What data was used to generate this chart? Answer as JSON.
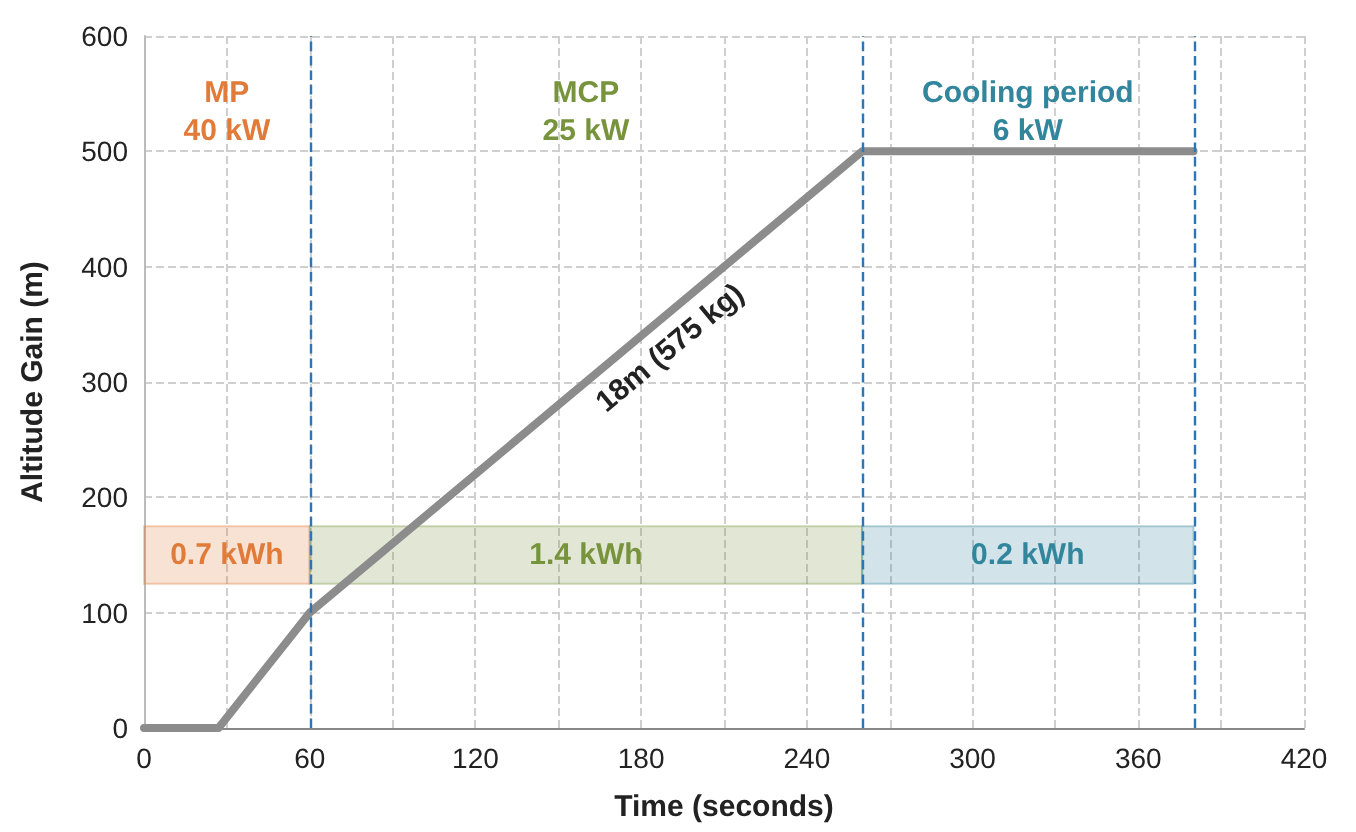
{
  "chart_data": {
    "type": "line",
    "xlabel": "Time (seconds)",
    "ylabel": "Altitude Gain (m)",
    "x": [
      0,
      27,
      60,
      260,
      380
    ],
    "series": [
      {
        "color": "#8c8c8c",
        "values": [
          0,
          0,
          100,
          500,
          500
        ]
      }
    ],
    "xlim": [
      0,
      420
    ],
    "ylim": [
      0,
      600
    ],
    "xticks": [
      0,
      {
        "value": 30,
        "label": null
      },
      60,
      {
        "value": 90,
        "label": null
      },
      120,
      {
        "value": 150,
        "label": null
      },
      180,
      {
        "value": 210,
        "label": null
      },
      240,
      {
        "value": 270,
        "label": null
      },
      300,
      {
        "value": 330,
        "label": null
      },
      360,
      {
        "value": 390,
        "label": null
      },
      420
    ],
    "yticks": [
      0,
      100,
      200,
      300,
      400,
      500,
      600
    ],
    "grid": true,
    "marker": "none",
    "line_style": "solid",
    "ref_lines": [
      {
        "axis": "x",
        "value": 60,
        "color": "#2e75b6",
        "line_style": "dashed"
      },
      {
        "axis": "x",
        "value": 260,
        "color": "#2e75b6",
        "line_style": "dashed"
      },
      {
        "axis": "x",
        "value": 380,
        "color": "#2e75b6",
        "line_style": "dashed"
      }
    ],
    "bands": [
      {
        "axis": "y",
        "from": 125,
        "to": 175,
        "label": "0.7 kWh",
        "color": "#e07b39"
      },
      {
        "axis": "y",
        "from": 125,
        "to": 175,
        "label": "1.4 kWh",
        "color": "#77933c"
      },
      {
        "axis": "y",
        "from": 125,
        "to": 175,
        "label": "0.2 kWh",
        "color": "#31859c"
      }
    ],
    "annotations": [
      "MP\n40 kW",
      "MCP\n25 kW",
      "Cooling period\n6 kW",
      "18m (575 kg)"
    ]
  }
}
